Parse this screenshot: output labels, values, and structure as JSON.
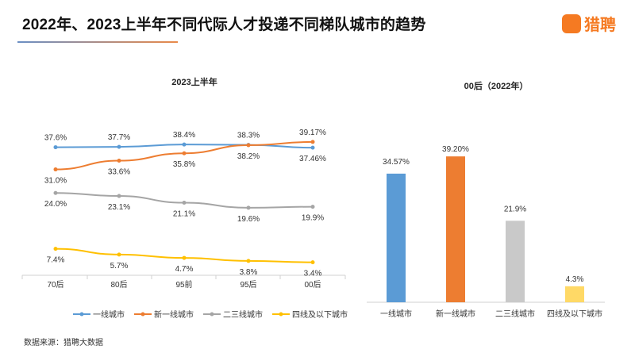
{
  "header": {
    "title": "2022年、2023上半年不同代际人才投递不同梯队城市的趋势",
    "logo_text": "猎聘",
    "logo_icon_text": "猎聘"
  },
  "source": "数据来源：猎聘大数据",
  "chart_data": [
    {
      "type": "line",
      "title": "2023上半年",
      "categories": [
        "70后",
        "80后",
        "95前",
        "95后",
        "00后"
      ],
      "ylim": [
        0,
        40
      ],
      "grid": false,
      "legend_position": "bottom",
      "series": [
        {
          "name": "一线城市",
          "color": "#5b9bd5",
          "values": [
            37.6,
            37.7,
            38.4,
            38.3,
            37.46
          ],
          "labels": [
            "37.6%",
            "37.7%",
            "38.4%",
            "38.3%",
            "37.46%"
          ]
        },
        {
          "name": "新一线城市",
          "color": "#ed7d31",
          "values": [
            31.0,
            33.6,
            35.8,
            38.2,
            39.17
          ],
          "labels": [
            "31.0%",
            "33.6%",
            "35.8%",
            "38.2%",
            "39.17%"
          ]
        },
        {
          "name": "二三线城市",
          "color": "#a5a5a5",
          "values": [
            24.0,
            23.1,
            21.1,
            19.6,
            19.9
          ],
          "labels": [
            "24.0%",
            "23.1%",
            "21.1%",
            "19.6%",
            "19.9%"
          ]
        },
        {
          "name": "四线及以下城市",
          "color": "#ffc000",
          "values": [
            7.4,
            5.7,
            4.7,
            3.8,
            3.4
          ],
          "labels": [
            "7.4%",
            "5.7%",
            "4.7%",
            "3.8%",
            "3.4%"
          ]
        }
      ]
    },
    {
      "type": "bar",
      "title": "00后（2022年）",
      "categories": [
        "一线城市",
        "新一线城市",
        "二三线城市",
        "四线及以下城市"
      ],
      "values": [
        34.57,
        39.2,
        21.9,
        4.3
      ],
      "labels": [
        "34.57%",
        "39.20%",
        "21.9%",
        "4.3%"
      ],
      "colors": [
        "#5b9bd5",
        "#ed7d31",
        "#c9c9c9",
        "#ffd966"
      ],
      "ylim": [
        0,
        40
      ],
      "grid": false
    }
  ]
}
